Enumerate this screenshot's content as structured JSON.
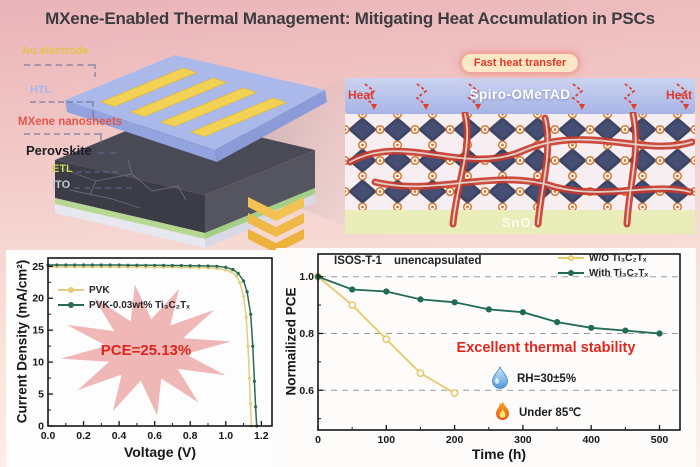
{
  "title": "MXene-Enabled Thermal Management: Mitigating Heat Accumulation in PSCs",
  "device": {
    "labels": [
      {
        "text": "Au electrode",
        "color": "#e5c24a"
      },
      {
        "text": "HTL",
        "color": "#a7b5ea"
      },
      {
        "text": "MXene nanosheets",
        "color": "#e2584a"
      },
      {
        "text": "Perovskite",
        "color": "#1d1d22"
      },
      {
        "text": "ETL",
        "color": "#cbd355"
      },
      {
        "text": "ITO",
        "color": "#c6c8d2"
      }
    ]
  },
  "mechanism": {
    "badge_label": "Fast heat transfer",
    "heat_left": "Heat",
    "heat_right": "Heat",
    "htl_label": "Spiro-OMeTAD",
    "etl_label": "SnO₂"
  },
  "chart_data": [
    {
      "id": "jv",
      "type": "line",
      "xlabel": "Voltage (V)",
      "ylabel": "Current Density (mA/cm²)",
      "xlim": [
        0,
        1.26
      ],
      "ylim": [
        0,
        26.3
      ],
      "xticks": [
        0,
        0.2,
        0.4,
        0.6,
        0.8,
        1.0,
        1.2
      ],
      "yticks": [
        0,
        5,
        10,
        15,
        20,
        25
      ],
      "legend_position": "upper-left",
      "annotation": "PCE=25.13%",
      "annotation_color": "#e0231c",
      "series": [
        {
          "name": "PVK",
          "color": "#e3cd7d",
          "x": [
            0,
            0.05,
            0.1,
            0.15,
            0.2,
            0.25,
            0.3,
            0.35,
            0.4,
            0.45,
            0.5,
            0.55,
            0.6,
            0.65,
            0.7,
            0.75,
            0.8,
            0.85,
            0.9,
            0.95,
            1.0,
            1.03,
            1.06,
            1.08,
            1.1,
            1.115,
            1.125,
            1.133,
            1.139,
            1.144
          ],
          "y": [
            24.9,
            24.9,
            24.9,
            24.9,
            24.9,
            24.9,
            24.9,
            24.9,
            24.88,
            24.88,
            24.87,
            24.86,
            24.85,
            24.85,
            24.84,
            24.83,
            24.82,
            24.8,
            24.75,
            24.65,
            24.45,
            24.15,
            23.5,
            22.4,
            20.3,
            17.0,
            12.5,
            7.5,
            3.5,
            0
          ]
        },
        {
          "name": "PVK-0.03wt% Ti₃C₂Tₓ",
          "color": "#2b6a52",
          "x": [
            0,
            0.05,
            0.1,
            0.15,
            0.2,
            0.25,
            0.3,
            0.35,
            0.4,
            0.45,
            0.5,
            0.55,
            0.6,
            0.65,
            0.7,
            0.75,
            0.8,
            0.85,
            0.9,
            0.95,
            1.0,
            1.04,
            1.07,
            1.1,
            1.12,
            1.14,
            1.152,
            1.161,
            1.168,
            1.174
          ],
          "y": [
            25.2,
            25.2,
            25.2,
            25.2,
            25.2,
            25.2,
            25.2,
            25.2,
            25.2,
            25.18,
            25.17,
            25.16,
            25.15,
            25.14,
            25.13,
            25.12,
            25.1,
            25.08,
            25.05,
            25.0,
            24.85,
            24.5,
            23.9,
            22.7,
            21.0,
            17.5,
            12.5,
            7.0,
            3.0,
            0
          ]
        }
      ]
    },
    {
      "id": "stability",
      "type": "line",
      "protocol": "ISOS-T-1",
      "condition": "unencapsulated",
      "xlabel": "Time (h)",
      "ylabel": "Normailized PCE",
      "xlim": [
        0,
        530
      ],
      "ylim": [
        0.46,
        1.08
      ],
      "xticks": [
        0,
        100,
        200,
        300,
        400,
        500
      ],
      "yticks": [
        0.6,
        0.8,
        1.0
      ],
      "grid": "dashed-y",
      "legend_position": "upper-right",
      "annotation": "Excellent thermal stability",
      "annotation_color": "#e3261d",
      "badges": [
        {
          "icon": "water-drop",
          "label": "RH=30±5%"
        },
        {
          "icon": "flame",
          "label": "Under 85℃"
        }
      ],
      "series": [
        {
          "name": "W/O Ti₃C₂Tₓ",
          "color": "#e8c96a",
          "marker": "open",
          "x": [
            0,
            50,
            100,
            150,
            200
          ],
          "y": [
            1.0,
            0.9,
            0.78,
            0.66,
            0.59
          ]
        },
        {
          "name": "With Ti₃C₂Tₓ",
          "color": "#1f6b58",
          "marker": "filled",
          "x": [
            0,
            50,
            100,
            150,
            200,
            250,
            300,
            350,
            400,
            450,
            500
          ],
          "y": [
            1.0,
            0.955,
            0.948,
            0.92,
            0.91,
            0.885,
            0.875,
            0.84,
            0.82,
            0.81,
            0.8
          ]
        }
      ]
    }
  ]
}
